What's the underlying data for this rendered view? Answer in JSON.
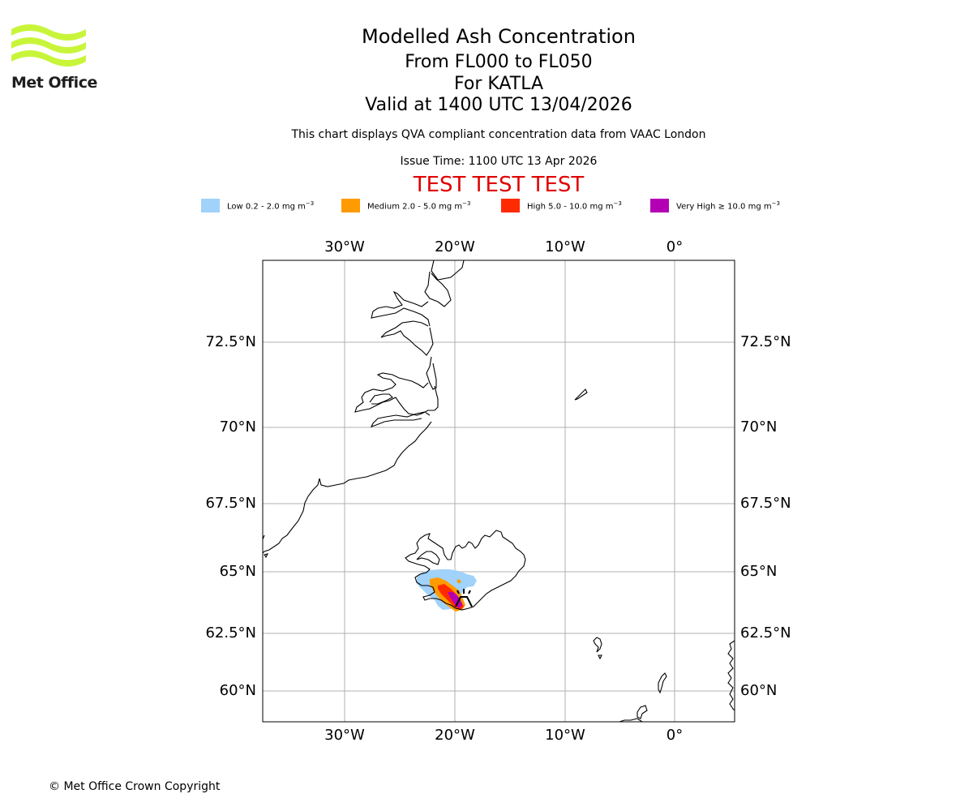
{
  "logo": {
    "text": "Met Office",
    "color": "#c8f53a"
  },
  "title": {
    "main": "Modelled Ash Concentration",
    "levels": "From FL000 to FL050",
    "volcano": "For KATLA",
    "valid": "Valid at 1400 UTC 13/04/2026"
  },
  "qva_note": "This chart displays QVA compliant concentration data from VAAC London",
  "issue_time": "Issue Time: 1100 UTC 13 Apr 2026",
  "test_banner": "TEST TEST TEST",
  "legend": [
    {
      "label": "Low 0.2 - 2.0 mg m",
      "sup": "−3",
      "color": "#a0d2fa"
    },
    {
      "label": "Medium 2.0 - 5.0 mg m",
      "sup": "−3",
      "color": "#ff9b00"
    },
    {
      "label": "High 5.0 - 10.0 mg m",
      "sup": "−3",
      "color": "#ff2a00"
    },
    {
      "label": "Very High  ≥  10.0 mg m",
      "sup": "−3",
      "color": "#b400b4"
    }
  ],
  "map": {
    "lon_labels": [
      "30°W",
      "20°W",
      "10°W",
      "0°"
    ],
    "lat_labels": [
      "72.5°N",
      "70°N",
      "67.5°N",
      "65°N",
      "62.5°N",
      "60°N"
    ],
    "gridline_color": "#b0b0b0",
    "coast_color": "#000000"
  },
  "copyright": "© Met Office Crown Copyright"
}
